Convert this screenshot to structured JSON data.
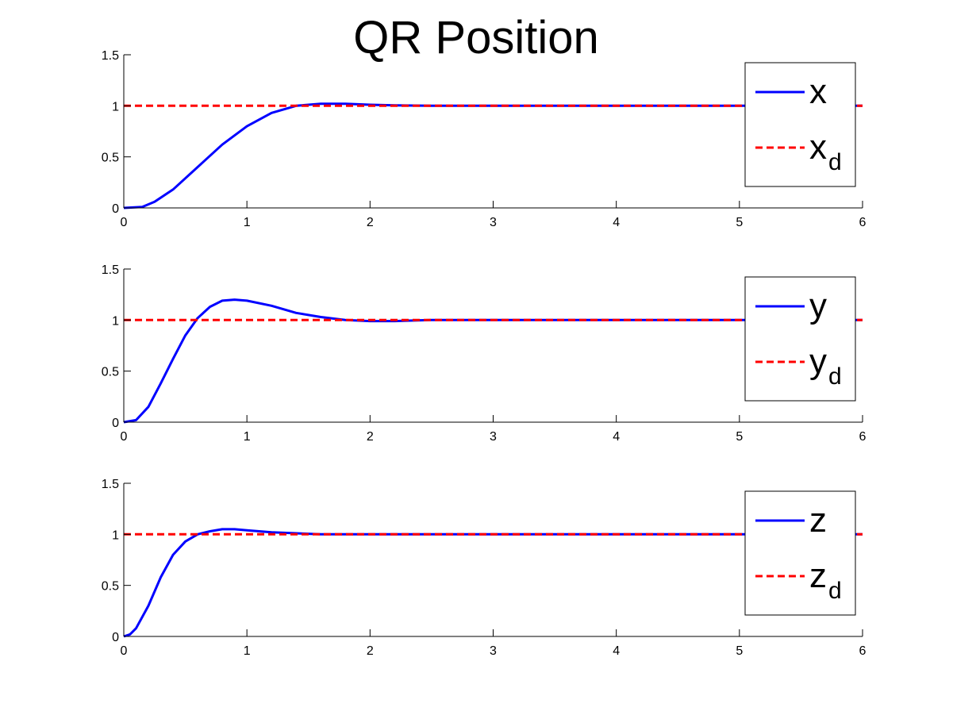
{
  "figure": {
    "title": "QR Position"
  },
  "chart_data": [
    {
      "type": "line",
      "xlim": [
        0,
        6
      ],
      "ylim": [
        0,
        1.5
      ],
      "xticks": [
        "0",
        "1",
        "2",
        "3",
        "4",
        "5",
        "6"
      ],
      "yticks": [
        "0",
        "0.5",
        "1",
        "1.5"
      ],
      "grid": false,
      "legend_position": "top-right",
      "series": [
        {
          "name": "x",
          "color": "#0000ff",
          "style": "solid",
          "x": [
            0,
            0.15,
            0.25,
            0.4,
            0.6,
            0.8,
            1.0,
            1.2,
            1.4,
            1.6,
            1.8,
            2.0,
            2.2,
            2.5,
            3,
            4,
            5,
            6
          ],
          "y": [
            0,
            0.01,
            0.06,
            0.18,
            0.4,
            0.62,
            0.8,
            0.93,
            1.0,
            1.02,
            1.02,
            1.01,
            1.005,
            1.0,
            1.0,
            1.0,
            1.0,
            1.0
          ]
        },
        {
          "name": "x",
          "subscript": "d",
          "color": "#ff0000",
          "style": "dashed",
          "x": [
            0,
            6
          ],
          "y": [
            1,
            1
          ]
        }
      ]
    },
    {
      "type": "line",
      "xlim": [
        0,
        6
      ],
      "ylim": [
        0,
        1.5
      ],
      "xticks": [
        "0",
        "1",
        "2",
        "3",
        "4",
        "5",
        "6"
      ],
      "yticks": [
        "0",
        "0.5",
        "1",
        "1.5"
      ],
      "grid": false,
      "legend_position": "top-right",
      "series": [
        {
          "name": "y",
          "color": "#0000ff",
          "style": "solid",
          "x": [
            0,
            0.1,
            0.2,
            0.3,
            0.4,
            0.5,
            0.6,
            0.7,
            0.8,
            0.9,
            1.0,
            1.2,
            1.4,
            1.6,
            1.8,
            2.0,
            2.2,
            2.5,
            3,
            4,
            5,
            6
          ],
          "y": [
            0,
            0.02,
            0.15,
            0.38,
            0.62,
            0.85,
            1.02,
            1.13,
            1.19,
            1.2,
            1.19,
            1.14,
            1.07,
            1.03,
            1.0,
            0.99,
            0.99,
            1.0,
            1.0,
            1.0,
            1.0,
            1.0
          ]
        },
        {
          "name": "y",
          "subscript": "d",
          "color": "#ff0000",
          "style": "dashed",
          "x": [
            0,
            6
          ],
          "y": [
            1,
            1
          ]
        }
      ]
    },
    {
      "type": "line",
      "xlim": [
        0,
        6
      ],
      "ylim": [
        0,
        1.5
      ],
      "xticks": [
        "0",
        "1",
        "2",
        "3",
        "4",
        "5",
        "6"
      ],
      "yticks": [
        "0",
        "0.5",
        "1",
        "1.5"
      ],
      "grid": false,
      "legend_position": "top-right",
      "series": [
        {
          "name": "z",
          "color": "#0000ff",
          "style": "solid",
          "x": [
            0,
            0.05,
            0.1,
            0.2,
            0.3,
            0.4,
            0.5,
            0.6,
            0.7,
            0.8,
            0.9,
            1.0,
            1.2,
            1.4,
            1.6,
            2.0,
            3,
            4,
            5,
            6
          ],
          "y": [
            0,
            0.02,
            0.08,
            0.3,
            0.58,
            0.8,
            0.93,
            1.0,
            1.03,
            1.05,
            1.05,
            1.04,
            1.02,
            1.01,
            1.0,
            1.0,
            1.0,
            1.0,
            1.0,
            1.0
          ]
        },
        {
          "name": "z",
          "subscript": "d",
          "color": "#ff0000",
          "style": "dashed",
          "x": [
            0,
            6
          ],
          "y": [
            1,
            1
          ]
        }
      ]
    }
  ]
}
